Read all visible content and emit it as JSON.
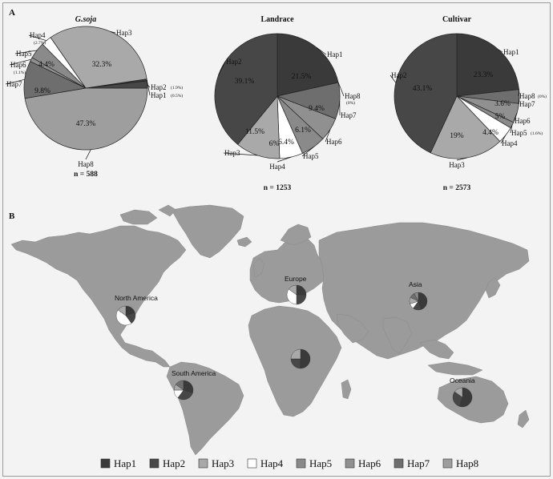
{
  "figure": {
    "panel_a": "A",
    "panel_b": "B"
  },
  "colors": {
    "Hap1": "#3a3a3a",
    "Hap2": "#474747",
    "Hap3": "#a9a9a9",
    "Hap4": "#ffffff",
    "Hap5": "#8a8a8a",
    "Hap6": "#909090",
    "Hap7": "#6e6e6e",
    "Hap8": "#9e9e9e",
    "land": "#9b9b9b",
    "ocean": "#f3f3f3"
  },
  "chart_data": [
    {
      "type": "pie",
      "title": "G.soja",
      "n_label": "n = 588",
      "slices": [
        {
          "name": "Hap1",
          "value": 0.5,
          "label": "Hap1",
          "pct": "",
          "note": "(0.5%)"
        },
        {
          "name": "Hap2",
          "value": 1.9,
          "label": "Hap2",
          "pct": "",
          "note": "(1.9%)"
        },
        {
          "name": "Hap8",
          "value": 47.3,
          "label": "Hap8",
          "pct": "47.3%",
          "note": ""
        },
        {
          "name": "Hap7",
          "value": 9.8,
          "label": "Hap7",
          "pct": "9.8%",
          "note": ""
        },
        {
          "name": "Hap6",
          "value": 1.1,
          "label": "Hap6",
          "pct": "",
          "note": "(1.1%)"
        },
        {
          "name": "Hap5",
          "value": 4.4,
          "label": "Hap5",
          "pct": "4.4%",
          "note": ""
        },
        {
          "name": "Hap4",
          "value": 2.7,
          "label": "Hap4",
          "pct": "",
          "note": "(2.7%)"
        },
        {
          "name": "Hap3",
          "value": 32.3,
          "label": "Hap3",
          "pct": "32.3%",
          "note": ""
        }
      ]
    },
    {
      "type": "pie",
      "title": "Landrace",
      "n_label": "n = 1253",
      "slices": [
        {
          "name": "Hap1",
          "value": 21.5,
          "label": "Hap1",
          "pct": "21.5%",
          "note": ""
        },
        {
          "name": "Hap8",
          "value": 0,
          "label": "Hap8",
          "pct": "",
          "note": "(0%)"
        },
        {
          "name": "Hap7",
          "value": 9.4,
          "label": "Hap7",
          "pct": "9.4%",
          "note": ""
        },
        {
          "name": "Hap6",
          "value": 6.1,
          "label": "Hap6",
          "pct": "6.1%",
          "note": ""
        },
        {
          "name": "Hap5",
          "value": 6.4,
          "label": "Hap5",
          "pct": "6.4%",
          "note": ""
        },
        {
          "name": "Hap4",
          "value": 6.0,
          "label": "Hap4",
          "pct": "6%",
          "note": ""
        },
        {
          "name": "Hap3",
          "value": 11.5,
          "label": "Hap3",
          "pct": "11.5%",
          "note": ""
        },
        {
          "name": "Hap2",
          "value": 39.1,
          "label": "Hap2",
          "pct": "39.1%",
          "note": ""
        }
      ]
    },
    {
      "type": "pie",
      "title": "Cultivar",
      "n_label": "n = 2573",
      "slices": [
        {
          "name": "Hap1",
          "value": 23.3,
          "label": "Hap1",
          "pct": "23.3%",
          "note": ""
        },
        {
          "name": "Hap8",
          "value": 0,
          "label": "Hap8",
          "pct": "",
          "note": "(0%)"
        },
        {
          "name": "Hap7",
          "value": 3.6,
          "label": "Hap7",
          "pct": "3.6%",
          "note": ""
        },
        {
          "name": "Hap6",
          "value": 5.0,
          "label": "Hap6",
          "pct": "5%",
          "note": ""
        },
        {
          "name": "Hap5",
          "value": 1.6,
          "label": "Hap5",
          "pct": "",
          "note": "(1.6%)"
        },
        {
          "name": "Hap4",
          "value": 4.4,
          "label": "Hap4",
          "pct": "4.4%",
          "note": ""
        },
        {
          "name": "Hap3",
          "value": 19.0,
          "label": "Hap3",
          "pct": "19%",
          "note": ""
        },
        {
          "name": "Hap2",
          "value": 43.1,
          "label": "Hap2",
          "pct": "43.1%",
          "note": ""
        }
      ]
    }
  ],
  "map": {
    "regions": [
      {
        "name": "North America",
        "label": "North America"
      },
      {
        "name": "Europe",
        "label": "Europe"
      },
      {
        "name": "Asia",
        "label": "Asia"
      },
      {
        "name": "South America",
        "label": "South America"
      },
      {
        "name": "Africa",
        "label": ""
      },
      {
        "name": "Oceania",
        "label": "Oceania"
      }
    ],
    "region_pies": [
      [
        {
          "name": "Hap1",
          "value": 20
        },
        {
          "name": "Hap2",
          "value": 20
        },
        {
          "name": "Hap4",
          "value": 45
        },
        {
          "name": "Hap3",
          "value": 15
        }
      ],
      [
        {
          "name": "Hap1",
          "value": 25
        },
        {
          "name": "Hap2",
          "value": 25
        },
        {
          "name": "Hap4",
          "value": 35
        },
        {
          "name": "Hap3",
          "value": 15
        }
      ],
      [
        {
          "name": "Hap1",
          "value": 45
        },
        {
          "name": "Hap2",
          "value": 15
        },
        {
          "name": "Hap4",
          "value": 10
        },
        {
          "name": "Hap3",
          "value": 12
        },
        {
          "name": "Hap7",
          "value": 10
        },
        {
          "name": "Hap5",
          "value": 8
        }
      ],
      [
        {
          "name": "Hap1",
          "value": 30
        },
        {
          "name": "Hap2",
          "value": 30
        },
        {
          "name": "Hap4",
          "value": 15
        },
        {
          "name": "Hap3",
          "value": 10
        },
        {
          "name": "Hap7",
          "value": 15
        }
      ],
      [
        {
          "name": "Hap1",
          "value": 50
        },
        {
          "name": "Hap2",
          "value": 25
        },
        {
          "name": "Hap3",
          "value": 25
        }
      ],
      [
        {
          "name": "Hap1",
          "value": 55
        },
        {
          "name": "Hap2",
          "value": 30
        },
        {
          "name": "Hap3",
          "value": 15
        }
      ]
    ]
  },
  "legend": [
    {
      "name": "Hap1",
      "label": "Hap1"
    },
    {
      "name": "Hap2",
      "label": "Hap2"
    },
    {
      "name": "Hap3",
      "label": "Hap3"
    },
    {
      "name": "Hap4",
      "label": "Hap4"
    },
    {
      "name": "Hap5",
      "label": "Hap5"
    },
    {
      "name": "Hap6",
      "label": "Hap6"
    },
    {
      "name": "Hap7",
      "label": "Hap7"
    },
    {
      "name": "Hap8",
      "label": "Hap8"
    }
  ]
}
